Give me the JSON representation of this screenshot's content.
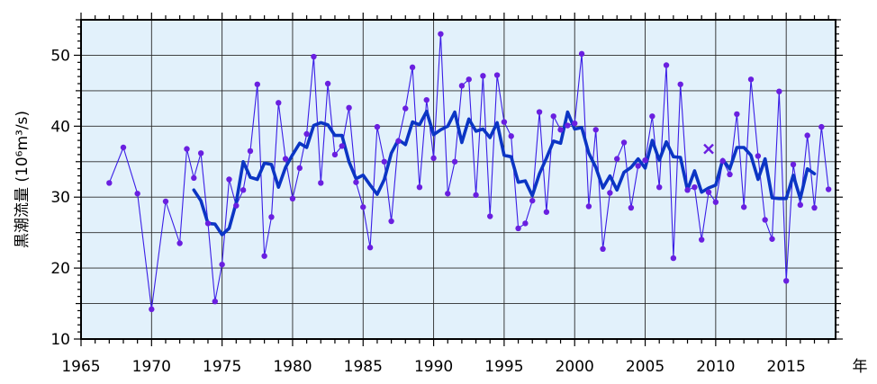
{
  "chart_data": {
    "type": "line",
    "title": "",
    "xlabel": "年",
    "ylabel": "黒潮流量 (10⁶m³/s)",
    "xlim": [
      1965,
      2018.5
    ],
    "ylim": [
      10,
      55
    ],
    "xticks": [
      1965,
      1970,
      1975,
      1980,
      1985,
      1990,
      1995,
      2000,
      2005,
      2010,
      2015
    ],
    "yticks": [
      10,
      20,
      30,
      40,
      50
    ],
    "grid": true,
    "legend": "none",
    "colors": {
      "background": "#e2f1fb",
      "grid": "#2a2a2a",
      "thin_series": "#3a1ee6",
      "thick_series": "#0b35c4",
      "marker": "#6a1fe0"
    },
    "series": [
      {
        "key": "observed",
        "style": "thin line with dot markers",
        "x": [
          1967.0,
          1968.0,
          1969.0,
          1970.0,
          1971.0,
          1972.0,
          1972.5,
          1973.0,
          1973.5,
          1974.0,
          1974.5,
          1975.0,
          1975.5,
          1976.0,
          1976.5,
          1977.0,
          1977.5,
          1978.0,
          1978.5,
          1979.0,
          1979.5,
          1980.0,
          1980.5,
          1981.0,
          1981.5,
          1982.0,
          1982.5,
          1983.0,
          1983.5,
          1984.0,
          1984.5,
          1985.0,
          1985.5,
          1986.0,
          1986.5,
          1987.0,
          1987.5,
          1988.0,
          1988.5,
          1989.0,
          1989.5,
          1990.0,
          1990.5,
          1991.0,
          1991.5,
          1992.0,
          1992.5,
          1993.0,
          1993.5,
          1994.0,
          1994.5,
          1995.0,
          1995.5,
          1996.0,
          1996.5,
          1997.0,
          1997.5,
          1998.0,
          1998.5,
          1999.0,
          1999.5,
          2000.0,
          2000.5,
          2001.0,
          2001.5,
          2002.0,
          2002.5,
          2003.0,
          2003.5,
          2004.0,
          2004.5,
          2005.0,
          2005.5,
          2006.0,
          2006.5,
          2007.0,
          2007.5,
          2008.0,
          2008.5,
          2009.0,
          2009.5,
          2010.0,
          2010.5,
          2011.0,
          2011.5,
          2012.0,
          2012.5,
          2013.0,
          2013.5,
          2014.0,
          2014.5,
          2015.0,
          2015.5,
          2016.0,
          2016.5,
          2017.0,
          2017.5,
          2018.0
        ],
        "y": [
          32.0,
          37.0,
          30.5,
          14.2,
          29.4,
          23.5,
          36.8,
          32.7,
          36.2,
          26.3,
          15.3,
          20.5,
          32.5,
          28.8,
          31.0,
          36.5,
          45.9,
          21.7,
          27.2,
          43.3,
          35.4,
          29.8,
          34.1,
          38.9,
          49.8,
          32.0,
          46.0,
          36.0,
          37.2,
          42.6,
          32.1,
          28.6,
          22.9,
          39.9,
          35.0,
          26.6,
          37.9,
          42.5,
          48.3,
          31.4,
          43.7,
          35.5,
          53.0,
          30.5,
          35.0,
          45.7,
          46.6,
          30.3,
          47.1,
          27.3,
          47.2,
          40.6,
          38.6,
          25.6,
          26.3,
          29.5,
          42.0,
          27.9,
          41.4,
          39.5,
          40.1,
          40.4,
          50.2,
          28.7,
          39.5,
          22.7,
          30.6,
          35.4,
          37.7,
          28.5,
          34.4,
          35.2,
          41.4,
          31.4,
          48.6,
          21.4,
          45.9,
          31.0,
          31.4,
          24.0,
          30.7,
          29.3,
          35.1,
          33.2,
          41.7,
          28.6,
          46.6,
          35.8,
          26.8,
          24.1,
          44.9,
          18.2,
          34.6,
          28.9,
          38.7,
          28.5,
          39.9,
          31.1
        ]
      },
      {
        "key": "smoothed",
        "style": "thick line",
        "x": [
          1973.0,
          1973.5,
          1974.0,
          1974.5,
          1975.0,
          1975.5,
          1976.0,
          1976.5,
          1977.0,
          1977.5,
          1978.0,
          1978.5,
          1979.0,
          1979.5,
          1980.0,
          1980.5,
          1981.0,
          1981.5,
          1982.0,
          1982.5,
          1983.0,
          1983.5,
          1984.0,
          1984.5,
          1985.0,
          1985.5,
          1986.0,
          1986.5,
          1987.0,
          1987.5,
          1988.0,
          1988.5,
          1989.0,
          1989.5,
          1990.0,
          1990.5,
          1991.0,
          1991.5,
          1992.0,
          1992.5,
          1993.0,
          1993.5,
          1994.0,
          1994.5,
          1995.0,
          1995.5,
          1996.0,
          1996.5,
          1997.0,
          1997.5,
          1998.0,
          1998.5,
          1999.0,
          1999.5,
          2000.0,
          2000.5,
          2001.0,
          2001.5,
          2002.0,
          2002.5,
          2003.0,
          2003.5,
          2004.0,
          2004.5,
          2005.0,
          2005.5,
          2006.0,
          2006.5,
          2007.0,
          2007.5,
          2008.0,
          2008.5,
          2009.0,
          2009.5,
          2010.0,
          2010.5,
          2011.0,
          2011.5,
          2012.0,
          2012.5,
          2013.0,
          2013.5,
          2014.0,
          2014.5,
          2015.0,
          2015.5,
          2016.0,
          2016.5,
          2017.0
        ],
        "y": [
          31.0,
          29.5,
          26.3,
          26.2,
          24.7,
          25.6,
          29.2,
          35.0,
          32.8,
          32.5,
          34.8,
          34.6,
          31.4,
          34.2,
          36.0,
          37.6,
          37.0,
          40.1,
          40.5,
          40.2,
          38.7,
          38.7,
          35.0,
          32.6,
          33.1,
          31.7,
          30.4,
          32.5,
          36.2,
          38.1,
          37.4,
          40.6,
          40.2,
          42.1,
          38.8,
          39.5,
          40.0,
          42.0,
          37.7,
          41.0,
          39.3,
          39.6,
          38.4,
          40.5,
          35.9,
          35.7,
          32.1,
          32.3,
          30.2,
          33.3,
          35.5,
          37.9,
          37.6,
          42.0,
          39.6,
          39.8,
          36.2,
          34.2,
          31.3,
          33.0,
          31.0,
          33.5,
          34.2,
          35.4,
          34.1,
          38.0,
          35.2,
          37.8,
          35.7,
          35.6,
          31.0,
          33.7,
          30.7,
          31.3,
          31.7,
          35.3,
          34.0,
          37.0,
          37.0,
          35.9,
          32.5,
          35.4,
          29.9,
          29.8,
          29.8,
          33.1,
          29.8,
          34.0,
          33.3
        ]
      }
    ],
    "annotations": [
      {
        "type": "x-marker",
        "x": 2009.5,
        "y": 36.8
      }
    ]
  }
}
